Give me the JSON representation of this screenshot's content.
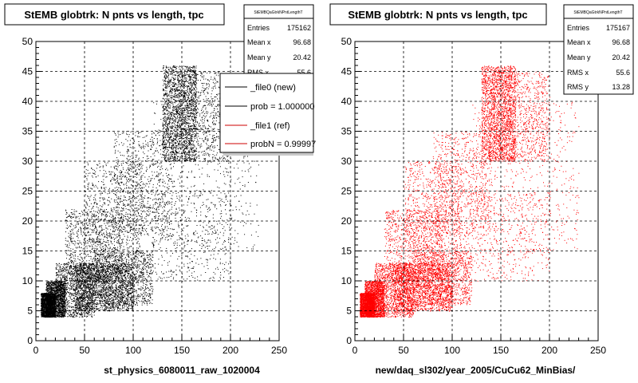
{
  "colors": {
    "left_points": "#000000",
    "right_points": "#ff0000",
    "ref_line": "#cc0000",
    "frame": "#000000"
  },
  "footer_text": "",
  "chart_data": [
    {
      "type": "scatter",
      "title": "StEMB globtrk: N pnts vs length, tpc",
      "xlabel": "st_physics_6080011_raw_1020004",
      "ylabel": "",
      "xlim": [
        0,
        250
      ],
      "ylim": [
        0,
        50
      ],
      "xticks": [
        "0",
        "50",
        "100",
        "150",
        "200",
        "250"
      ],
      "yticks": [
        "0",
        "5",
        "10",
        "15",
        "20",
        "25",
        "30",
        "35",
        "40",
        "45",
        "50"
      ],
      "grid": true,
      "point_color": "#000000",
      "stats": {
        "name": "StEMBQaGtrkNPntLengthT",
        "rows": [
          {
            "label": "Entries",
            "value": "175162"
          },
          {
            "label": "Mean x",
            "value": "96.68"
          },
          {
            "label": "Mean y",
            "value": "20.42"
          },
          {
            "label": "RMS x",
            "value": "55.6"
          }
        ]
      },
      "legend": {
        "placement": "top-right",
        "entries": [
          {
            "label": "_file0 (new)",
            "color": "#000000"
          },
          {
            "label": "prob = 1.000000",
            "color": "#000000"
          },
          {
            "label": "_file1 (ref)",
            "color": "#cc0000"
          },
          {
            "label": "probN = 0.99997",
            "color": "#cc0000"
          }
        ]
      },
      "density_regions": [
        {
          "x": [
            5,
            20
          ],
          "y": [
            4,
            8
          ],
          "weight": 10
        },
        {
          "x": [
            10,
            30
          ],
          "y": [
            4,
            10
          ],
          "weight": 8
        },
        {
          "x": [
            20,
            60
          ],
          "y": [
            4,
            13
          ],
          "weight": 7
        },
        {
          "x": [
            40,
            100
          ],
          "y": [
            5,
            13
          ],
          "weight": 9
        },
        {
          "x": [
            60,
            120
          ],
          "y": [
            6,
            15
          ],
          "weight": 6
        },
        {
          "x": [
            30,
            90
          ],
          "y": [
            10,
            22
          ],
          "weight": 5
        },
        {
          "x": [
            50,
            110
          ],
          "y": [
            15,
            30
          ],
          "weight": 4
        },
        {
          "x": [
            80,
            140
          ],
          "y": [
            18,
            35
          ],
          "weight": 4
        },
        {
          "x": [
            130,
            165
          ],
          "y": [
            30,
            46
          ],
          "weight": 10
        },
        {
          "x": [
            140,
            200
          ],
          "y": [
            30,
            45
          ],
          "weight": 5
        },
        {
          "x": [
            120,
            230
          ],
          "y": [
            15,
            40
          ],
          "weight": 3
        },
        {
          "x": [
            100,
            200
          ],
          "y": [
            10,
            25
          ],
          "weight": 3
        }
      ]
    },
    {
      "type": "scatter",
      "title": "StEMB globtrk: N pnts vs length, tpc",
      "xlabel": "new/daq_sl302/year_2005/CuCu62_MinBias/",
      "ylabel": "",
      "xlim": [
        0,
        250
      ],
      "ylim": [
        0,
        50
      ],
      "xticks": [
        "0",
        "50",
        "100",
        "150",
        "200",
        "250"
      ],
      "yticks": [
        "0",
        "5",
        "10",
        "15",
        "20",
        "25",
        "30",
        "35",
        "40",
        "45",
        "50"
      ],
      "grid": true,
      "point_color": "#ff0000",
      "stats": {
        "name": "StEMBQaGtrkNPntLengthT",
        "rows": [
          {
            "label": "Entries",
            "value": "175167"
          },
          {
            "label": "Mean x",
            "value": "96.68"
          },
          {
            "label": "Mean y",
            "value": "20.42"
          },
          {
            "label": "RMS x",
            "value": "55.6"
          },
          {
            "label": "RMS y",
            "value": "13.28"
          }
        ]
      },
      "density_regions": [
        {
          "x": [
            5,
            20
          ],
          "y": [
            4,
            8
          ],
          "weight": 10
        },
        {
          "x": [
            10,
            30
          ],
          "y": [
            4,
            10
          ],
          "weight": 8
        },
        {
          "x": [
            20,
            60
          ],
          "y": [
            4,
            13
          ],
          "weight": 7
        },
        {
          "x": [
            40,
            100
          ],
          "y": [
            5,
            13
          ],
          "weight": 9
        },
        {
          "x": [
            60,
            120
          ],
          "y": [
            6,
            15
          ],
          "weight": 6
        },
        {
          "x": [
            30,
            90
          ],
          "y": [
            10,
            22
          ],
          "weight": 5
        },
        {
          "x": [
            50,
            110
          ],
          "y": [
            15,
            30
          ],
          "weight": 4
        },
        {
          "x": [
            80,
            140
          ],
          "y": [
            18,
            35
          ],
          "weight": 4
        },
        {
          "x": [
            130,
            165
          ],
          "y": [
            30,
            46
          ],
          "weight": 10
        },
        {
          "x": [
            140,
            200
          ],
          "y": [
            30,
            45
          ],
          "weight": 5
        },
        {
          "x": [
            120,
            230
          ],
          "y": [
            15,
            40
          ],
          "weight": 3
        },
        {
          "x": [
            100,
            200
          ],
          "y": [
            10,
            25
          ],
          "weight": 3
        }
      ]
    }
  ]
}
